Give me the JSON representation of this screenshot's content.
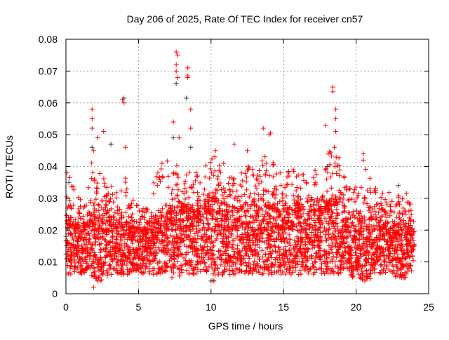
{
  "chart_data": {
    "type": "scatter",
    "title": "Day 206 of 2025, Rate Of TEC Index for receiver cn57",
    "xlabel": "GPS time / hours",
    "ylabel": "ROTI / TECUs",
    "xlim": [
      0,
      25
    ],
    "ylim": [
      0,
      0.08
    ],
    "xticks": [
      "0",
      "5",
      "10",
      "15",
      "20",
      "25"
    ],
    "yticks": [
      "0",
      "0.01",
      "0.02",
      "0.03",
      "0.04",
      "0.05",
      "0.06",
      "0.07",
      "0.08"
    ],
    "grid": true,
    "marker": "plus",
    "colors": {
      "primary": "#ff0000",
      "secondary": "#404040"
    },
    "note_density_bins": "per half-hour bin: [hour, low, dense_high, sparse_high]",
    "density_bins": [
      [
        0.0,
        0.006,
        0.024,
        0.041
      ],
      [
        0.5,
        0.006,
        0.022,
        0.033
      ],
      [
        1.0,
        0.006,
        0.022,
        0.03
      ],
      [
        1.5,
        0.005,
        0.025,
        0.042
      ],
      [
        2.0,
        0.004,
        0.026,
        0.04
      ],
      [
        2.5,
        0.005,
        0.027,
        0.037
      ],
      [
        3.0,
        0.006,
        0.024,
        0.035
      ],
      [
        3.5,
        0.006,
        0.022,
        0.033
      ],
      [
        4.0,
        0.006,
        0.024,
        0.041
      ],
      [
        4.5,
        0.007,
        0.021,
        0.03
      ],
      [
        5.0,
        0.006,
        0.021,
        0.029
      ],
      [
        5.5,
        0.006,
        0.022,
        0.032
      ],
      [
        6.0,
        0.006,
        0.023,
        0.038
      ],
      [
        6.5,
        0.006,
        0.025,
        0.042
      ],
      [
        7.0,
        0.005,
        0.026,
        0.04
      ],
      [
        7.5,
        0.005,
        0.028,
        0.043
      ],
      [
        8.0,
        0.006,
        0.028,
        0.044
      ],
      [
        8.5,
        0.006,
        0.026,
        0.04
      ],
      [
        9.0,
        0.006,
        0.027,
        0.038
      ],
      [
        9.5,
        0.006,
        0.029,
        0.042
      ],
      [
        10.0,
        0.004,
        0.03,
        0.044
      ],
      [
        10.5,
        0.005,
        0.029,
        0.042
      ],
      [
        11.0,
        0.006,
        0.027,
        0.038
      ],
      [
        11.5,
        0.006,
        0.027,
        0.041
      ],
      [
        12.0,
        0.006,
        0.028,
        0.04
      ],
      [
        12.5,
        0.006,
        0.028,
        0.042
      ],
      [
        13.0,
        0.006,
        0.028,
        0.04
      ],
      [
        13.5,
        0.006,
        0.029,
        0.045
      ],
      [
        14.0,
        0.006,
        0.028,
        0.042
      ],
      [
        14.5,
        0.006,
        0.026,
        0.038
      ],
      [
        15.0,
        0.006,
        0.027,
        0.04
      ],
      [
        15.5,
        0.006,
        0.028,
        0.039
      ],
      [
        16.0,
        0.006,
        0.027,
        0.038
      ],
      [
        16.5,
        0.006,
        0.026,
        0.036
      ],
      [
        17.0,
        0.006,
        0.027,
        0.039
      ],
      [
        17.5,
        0.006,
        0.028,
        0.04
      ],
      [
        18.0,
        0.006,
        0.029,
        0.045
      ],
      [
        18.5,
        0.006,
        0.03,
        0.044
      ],
      [
        19.0,
        0.006,
        0.026,
        0.038
      ],
      [
        19.5,
        0.005,
        0.024,
        0.034
      ],
      [
        20.0,
        0.004,
        0.023,
        0.036
      ],
      [
        20.5,
        0.004,
        0.024,
        0.04
      ],
      [
        21.0,
        0.006,
        0.024,
        0.034
      ],
      [
        21.5,
        0.006,
        0.024,
        0.033
      ],
      [
        22.0,
        0.006,
        0.023,
        0.032
      ],
      [
        22.5,
        0.005,
        0.022,
        0.031
      ],
      [
        23.0,
        0.005,
        0.022,
        0.032
      ],
      [
        23.5,
        0.006,
        0.021,
        0.029
      ]
    ],
    "outliers": [
      [
        1.8,
        0.058
      ],
      [
        1.8,
        0.055
      ],
      [
        1.8,
        0.052
      ],
      [
        1.9,
        0.045
      ],
      [
        2.2,
        0.049
      ],
      [
        2.6,
        0.051
      ],
      [
        3.1,
        0.047
      ],
      [
        3.9,
        0.061
      ],
      [
        4.0,
        0.06
      ],
      [
        4.1,
        0.046
      ],
      [
        7.6,
        0.076
      ],
      [
        7.7,
        0.075
      ],
      [
        7.6,
        0.072
      ],
      [
        7.6,
        0.07
      ],
      [
        7.7,
        0.068
      ],
      [
        8.4,
        0.071
      ],
      [
        8.4,
        0.068
      ],
      [
        8.4,
        0.0685
      ],
      [
        8.6,
        0.058
      ],
      [
        7.4,
        0.054
      ],
      [
        8.6,
        0.052
      ],
      [
        7.8,
        0.049
      ],
      [
        13.6,
        0.052
      ],
      [
        14.0,
        0.05
      ],
      [
        14.1,
        0.0505
      ],
      [
        17.9,
        0.053
      ],
      [
        18.4,
        0.065
      ],
      [
        18.4,
        0.0635
      ],
      [
        18.6,
        0.058
      ],
      [
        18.6,
        0.055
      ],
      [
        18.6,
        0.051
      ],
      [
        18.5,
        0.046
      ],
      [
        20.5,
        0.044
      ],
      [
        20.5,
        0.042
      ],
      [
        11.6,
        0.047
      ],
      [
        12.5,
        0.045
      ],
      [
        10.3,
        0.045
      ],
      [
        1.9,
        0.002
      ],
      [
        2.2,
        0.004
      ],
      [
        20.6,
        0.004
      ],
      [
        23.3,
        0.005
      ],
      [
        10.2,
        0.004
      ]
    ],
    "secondary_points": [
      [
        4.0,
        0.0615
      ],
      [
        8.3,
        0.0615
      ],
      [
        7.6,
        0.066
      ],
      [
        3.1,
        0.047
      ],
      [
        1.8,
        0.046
      ],
      [
        8.6,
        0.046
      ],
      [
        7.4,
        0.049
      ],
      [
        0.2,
        0.035
      ],
      [
        22.9,
        0.034
      ],
      [
        18.0,
        0.04
      ],
      [
        10.0,
        0.004
      ]
    ]
  }
}
